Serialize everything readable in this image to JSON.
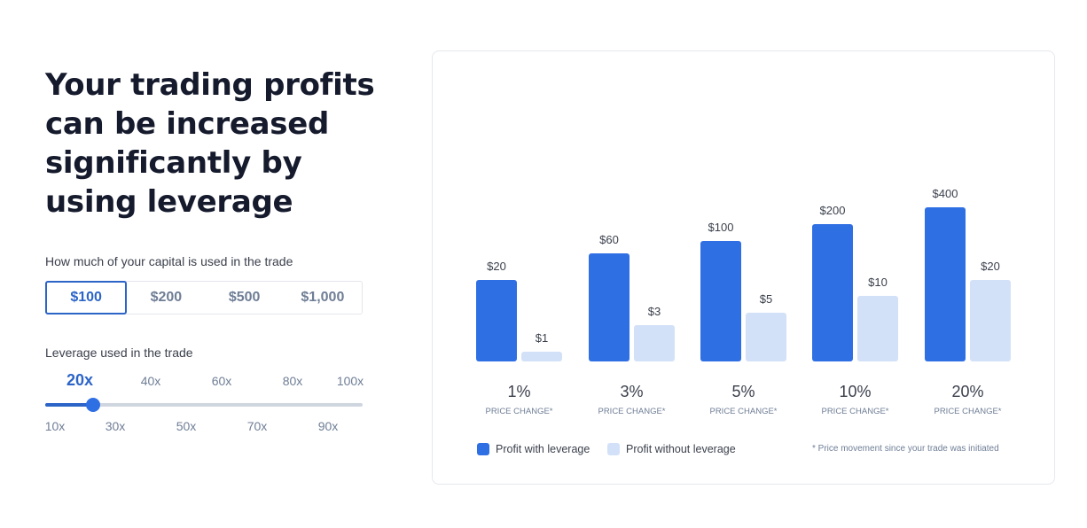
{
  "headline": "Your trading profits can be increased significantly by using leverage",
  "capital": {
    "label": "How much of your capital is used in the trade",
    "options": [
      "$100",
      "$200",
      "$500",
      "$1,000"
    ],
    "selected_index": 0
  },
  "leverage": {
    "label": "Leverage used in the trade",
    "top_labels": [
      "20x",
      "40x",
      "60x",
      "80x",
      "100x"
    ],
    "bottom_labels": [
      "10x",
      "30x",
      "50x",
      "70x",
      "90x"
    ],
    "selected": "20x",
    "range": [
      10,
      100
    ],
    "value": 20
  },
  "colors": {
    "accent": "#2c64c8",
    "with_leverage": "#2f6fe4",
    "without_leverage": "#d3e1f8",
    "text_dark": "#151a2d",
    "text_muted": "#6f7e96"
  },
  "chart_data": {
    "type": "bar",
    "categories": [
      "1%",
      "3%",
      "5%",
      "10%",
      "20%"
    ],
    "category_sublabel": "PRICE CHANGE*",
    "series": [
      {
        "name": "Profit with leverage",
        "values": [
          20,
          60,
          100,
          200,
          400
        ],
        "labels": [
          "$20",
          "$60",
          "$100",
          "$200",
          "$400"
        ]
      },
      {
        "name": "Profit without leverage",
        "values": [
          1,
          3,
          5,
          10,
          20
        ],
        "labels": [
          "$1",
          "$3",
          "$5",
          "$10",
          "$20"
        ]
      }
    ],
    "footnote": "* Price movement since your trade was initiated"
  }
}
